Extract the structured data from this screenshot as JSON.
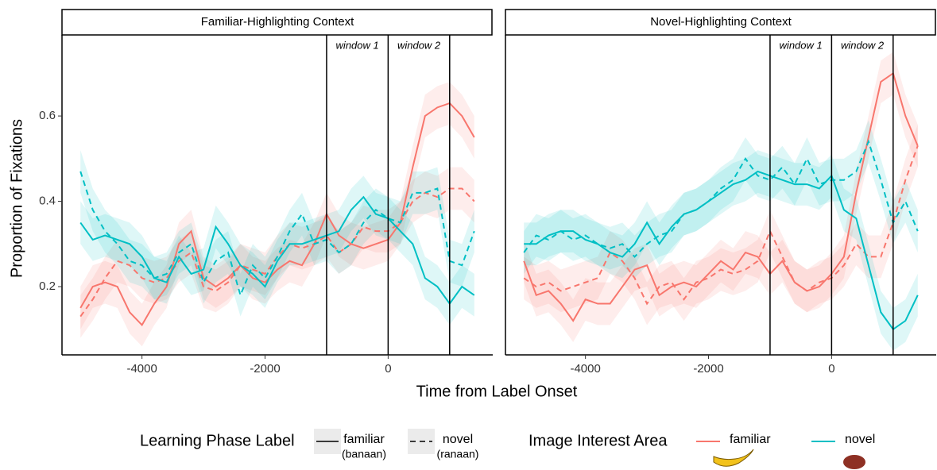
{
  "figure": {
    "y_label": "Proportion of Fixations",
    "x_label": "Time from Label Onset",
    "legend": {
      "linetype": {
        "title": "Learning Phase Label",
        "entries": [
          {
            "label": "familiar",
            "sublabel": "(banaan)",
            "dash": false
          },
          {
            "label": "novel",
            "sublabel": "(ranaan)",
            "dash": true
          }
        ]
      },
      "color": {
        "title": "Image Interest Area",
        "entries": [
          {
            "label": "familiar",
            "color": "#f8766d"
          },
          {
            "label": "novel",
            "color": "#00bfc4"
          }
        ]
      }
    }
  },
  "chart_data": [
    {
      "type": "line",
      "title": "Familiar-Highlighting Context",
      "x": [
        -5000,
        -4800,
        -4600,
        -4400,
        -4200,
        -4000,
        -3800,
        -3600,
        -3400,
        -3200,
        -3000,
        -2800,
        -2600,
        -2400,
        -2200,
        -2000,
        -1800,
        -1600,
        -1400,
        -1200,
        -1000,
        -800,
        -600,
        -400,
        -200,
        0,
        200,
        400,
        600,
        800,
        1000,
        1200,
        1400
      ],
      "series": [
        {
          "color": "#f8766d",
          "dash": false,
          "error": 0.05,
          "values": [
            0.15,
            0.2,
            0.21,
            0.2,
            0.14,
            0.11,
            0.16,
            0.2,
            0.3,
            0.33,
            0.22,
            0.2,
            0.22,
            0.25,
            0.22,
            0.21,
            0.24,
            0.26,
            0.25,
            0.3,
            0.37,
            0.32,
            0.3,
            0.29,
            0.3,
            0.31,
            0.35,
            0.48,
            0.6,
            0.62,
            0.63,
            0.6,
            0.55
          ]
        },
        {
          "color": "#f8766d",
          "dash": true,
          "error": 0.05,
          "values": [
            0.13,
            0.17,
            0.22,
            0.26,
            0.25,
            0.22,
            0.21,
            0.22,
            0.26,
            0.28,
            0.2,
            0.19,
            0.21,
            0.25,
            0.24,
            0.23,
            0.27,
            0.3,
            0.29,
            0.3,
            0.32,
            0.28,
            0.3,
            0.34,
            0.33,
            0.33,
            0.35,
            0.4,
            0.42,
            0.41,
            0.43,
            0.43,
            0.4
          ]
        },
        {
          "color": "#00bfc4",
          "dash": false,
          "error": 0.05,
          "values": [
            0.35,
            0.31,
            0.32,
            0.31,
            0.3,
            0.27,
            0.22,
            0.21,
            0.27,
            0.23,
            0.24,
            0.34,
            0.3,
            0.25,
            0.23,
            0.2,
            0.26,
            0.3,
            0.3,
            0.31,
            0.32,
            0.33,
            0.38,
            0.41,
            0.37,
            0.36,
            0.33,
            0.3,
            0.22,
            0.2,
            0.16,
            0.2,
            0.18
          ]
        },
        {
          "color": "#00bfc4",
          "dash": true,
          "error": 0.05,
          "values": [
            0.47,
            0.38,
            0.33,
            0.3,
            0.26,
            0.25,
            0.22,
            0.23,
            0.28,
            0.3,
            0.21,
            0.26,
            0.28,
            0.18,
            0.25,
            0.22,
            0.27,
            0.33,
            0.37,
            0.3,
            0.31,
            0.28,
            0.3,
            0.35,
            0.38,
            0.36,
            0.35,
            0.42,
            0.42,
            0.43,
            0.26,
            0.25,
            0.33
          ]
        }
      ],
      "vlines": [
        -1000,
        0,
        1000
      ],
      "annotations": [
        "window 1",
        "window 2"
      ],
      "xlim": [
        -5300,
        1700
      ],
      "ylim": [
        0.04,
        0.79
      ],
      "xticks": [
        -4000,
        -2000,
        0
      ],
      "yticks": [
        0.2,
        0.4,
        0.6
      ]
    },
    {
      "type": "line",
      "title": "Novel-Highlighting Context",
      "x": [
        -5000,
        -4800,
        -4600,
        -4400,
        -4200,
        -4000,
        -3800,
        -3600,
        -3400,
        -3200,
        -3000,
        -2800,
        -2600,
        -2400,
        -2200,
        -2000,
        -1800,
        -1600,
        -1400,
        -1200,
        -1000,
        -800,
        -600,
        -400,
        -200,
        0,
        200,
        400,
        600,
        800,
        1000,
        1200,
        1400
      ],
      "series": [
        {
          "color": "#f8766d",
          "dash": false,
          "error": 0.05,
          "values": [
            0.26,
            0.18,
            0.19,
            0.16,
            0.12,
            0.17,
            0.16,
            0.16,
            0.2,
            0.24,
            0.25,
            0.18,
            0.2,
            0.21,
            0.2,
            0.23,
            0.26,
            0.24,
            0.28,
            0.27,
            0.23,
            0.26,
            0.21,
            0.19,
            0.2,
            0.23,
            0.27,
            0.42,
            0.55,
            0.68,
            0.7,
            0.6,
            0.53
          ]
        },
        {
          "color": "#f8766d",
          "dash": true,
          "error": 0.05,
          "values": [
            0.22,
            0.2,
            0.21,
            0.19,
            0.2,
            0.21,
            0.22,
            0.28,
            0.26,
            0.22,
            0.16,
            0.2,
            0.21,
            0.17,
            0.21,
            0.22,
            0.24,
            0.23,
            0.24,
            0.26,
            0.33,
            0.27,
            0.21,
            0.19,
            0.21,
            0.22,
            0.25,
            0.3,
            0.27,
            0.27,
            0.35,
            0.45,
            0.53
          ]
        },
        {
          "color": "#00bfc4",
          "dash": false,
          "error": 0.05,
          "values": [
            0.3,
            0.3,
            0.32,
            0.33,
            0.33,
            0.31,
            0.3,
            0.28,
            0.27,
            0.3,
            0.35,
            0.3,
            0.34,
            0.37,
            0.38,
            0.4,
            0.42,
            0.44,
            0.45,
            0.47,
            0.46,
            0.45,
            0.44,
            0.44,
            0.43,
            0.46,
            0.38,
            0.36,
            0.25,
            0.14,
            0.1,
            0.12,
            0.18
          ]
        },
        {
          "color": "#00bfc4",
          "dash": true,
          "error": 0.05,
          "values": [
            0.28,
            0.32,
            0.31,
            0.33,
            0.31,
            0.32,
            0.3,
            0.29,
            0.3,
            0.27,
            0.3,
            0.32,
            0.33,
            0.37,
            0.38,
            0.4,
            0.43,
            0.45,
            0.5,
            0.46,
            0.45,
            0.48,
            0.44,
            0.5,
            0.44,
            0.45,
            0.45,
            0.47,
            0.54,
            0.45,
            0.35,
            0.4,
            0.33
          ]
        }
      ],
      "vlines": [
        -1000,
        0,
        1000
      ],
      "annotations": [
        "window 1",
        "window 2"
      ],
      "xlim": [
        -5300,
        1700
      ],
      "ylim": [
        0.04,
        0.79
      ],
      "xticks": [
        -4000,
        -2000,
        0
      ],
      "yticks": [
        0.2,
        0.4,
        0.6
      ]
    }
  ]
}
